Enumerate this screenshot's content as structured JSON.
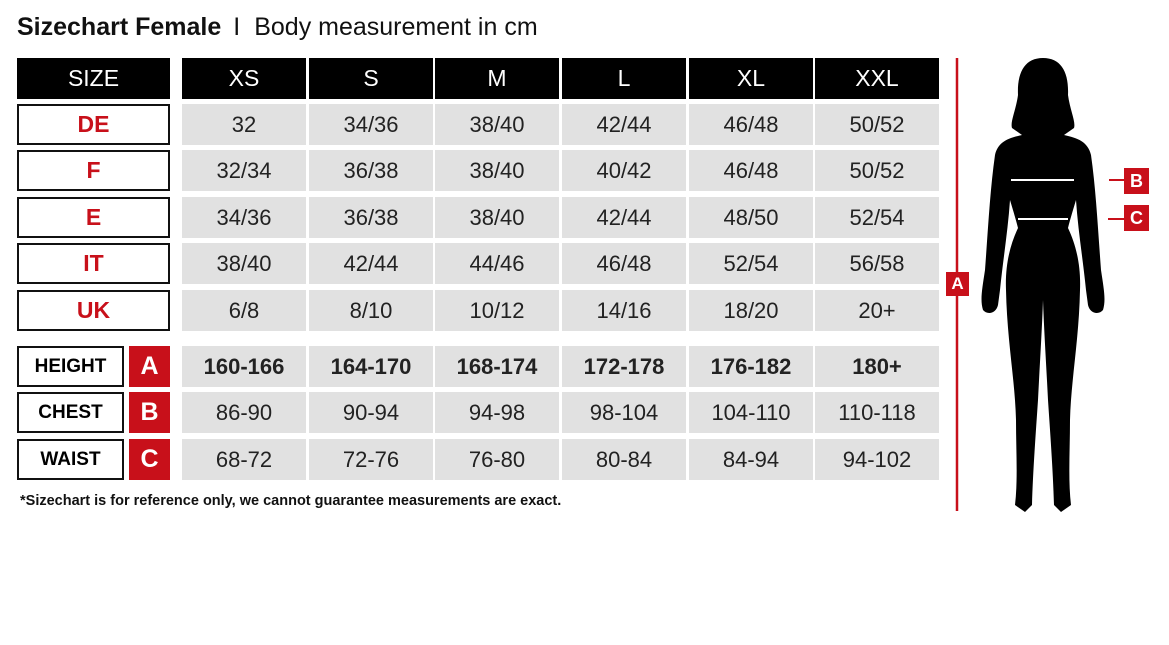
{
  "title": {
    "main": "Sizechart Female",
    "separator": "I",
    "sub": "Body measurement in cm"
  },
  "table": {
    "corner": "SIZE",
    "sizes": [
      "XS",
      "S",
      "M",
      "L",
      "XL",
      "XXL"
    ],
    "conversion_rows": [
      {
        "label": "DE",
        "values": [
          "32",
          "34/36",
          "38/40",
          "42/44",
          "46/48",
          "50/52"
        ]
      },
      {
        "label": "F",
        "values": [
          "32/34",
          "36/38",
          "38/40",
          "40/42",
          "46/48",
          "50/52"
        ]
      },
      {
        "label": "E",
        "values": [
          "34/36",
          "36/38",
          "38/40",
          "42/44",
          "48/50",
          "52/54"
        ]
      },
      {
        "label": "IT",
        "values": [
          "38/40",
          "42/44",
          "44/46",
          "46/48",
          "52/54",
          "56/58"
        ]
      },
      {
        "label": "UK",
        "values": [
          "6/8",
          "8/10",
          "10/12",
          "14/16",
          "18/20",
          "20+"
        ]
      }
    ],
    "measurement_rows": [
      {
        "label": "HEIGHT",
        "badge": "A",
        "bold": true,
        "values": [
          "160-166",
          "164-170",
          "168-174",
          "172-178",
          "176-182",
          "180+"
        ]
      },
      {
        "label": "CHEST",
        "badge": "B",
        "bold": false,
        "values": [
          "86-90",
          "90-94",
          "94-98",
          "98-104",
          "104-110",
          "110-118"
        ]
      },
      {
        "label": "WAIST",
        "badge": "C",
        "bold": false,
        "values": [
          "68-72",
          "72-76",
          "76-80",
          "80-84",
          "84-94",
          "94-102"
        ]
      }
    ]
  },
  "footnote": "*Sizechart is for reference only, we cannot guarantee measurements are exact.",
  "figure": {
    "badge_height": "A",
    "badge_chest": "B",
    "badge_waist": "C"
  },
  "colors": {
    "accent_red": "#c8101a",
    "header_black": "#000000",
    "cell_gray": "#e1e1e1"
  }
}
